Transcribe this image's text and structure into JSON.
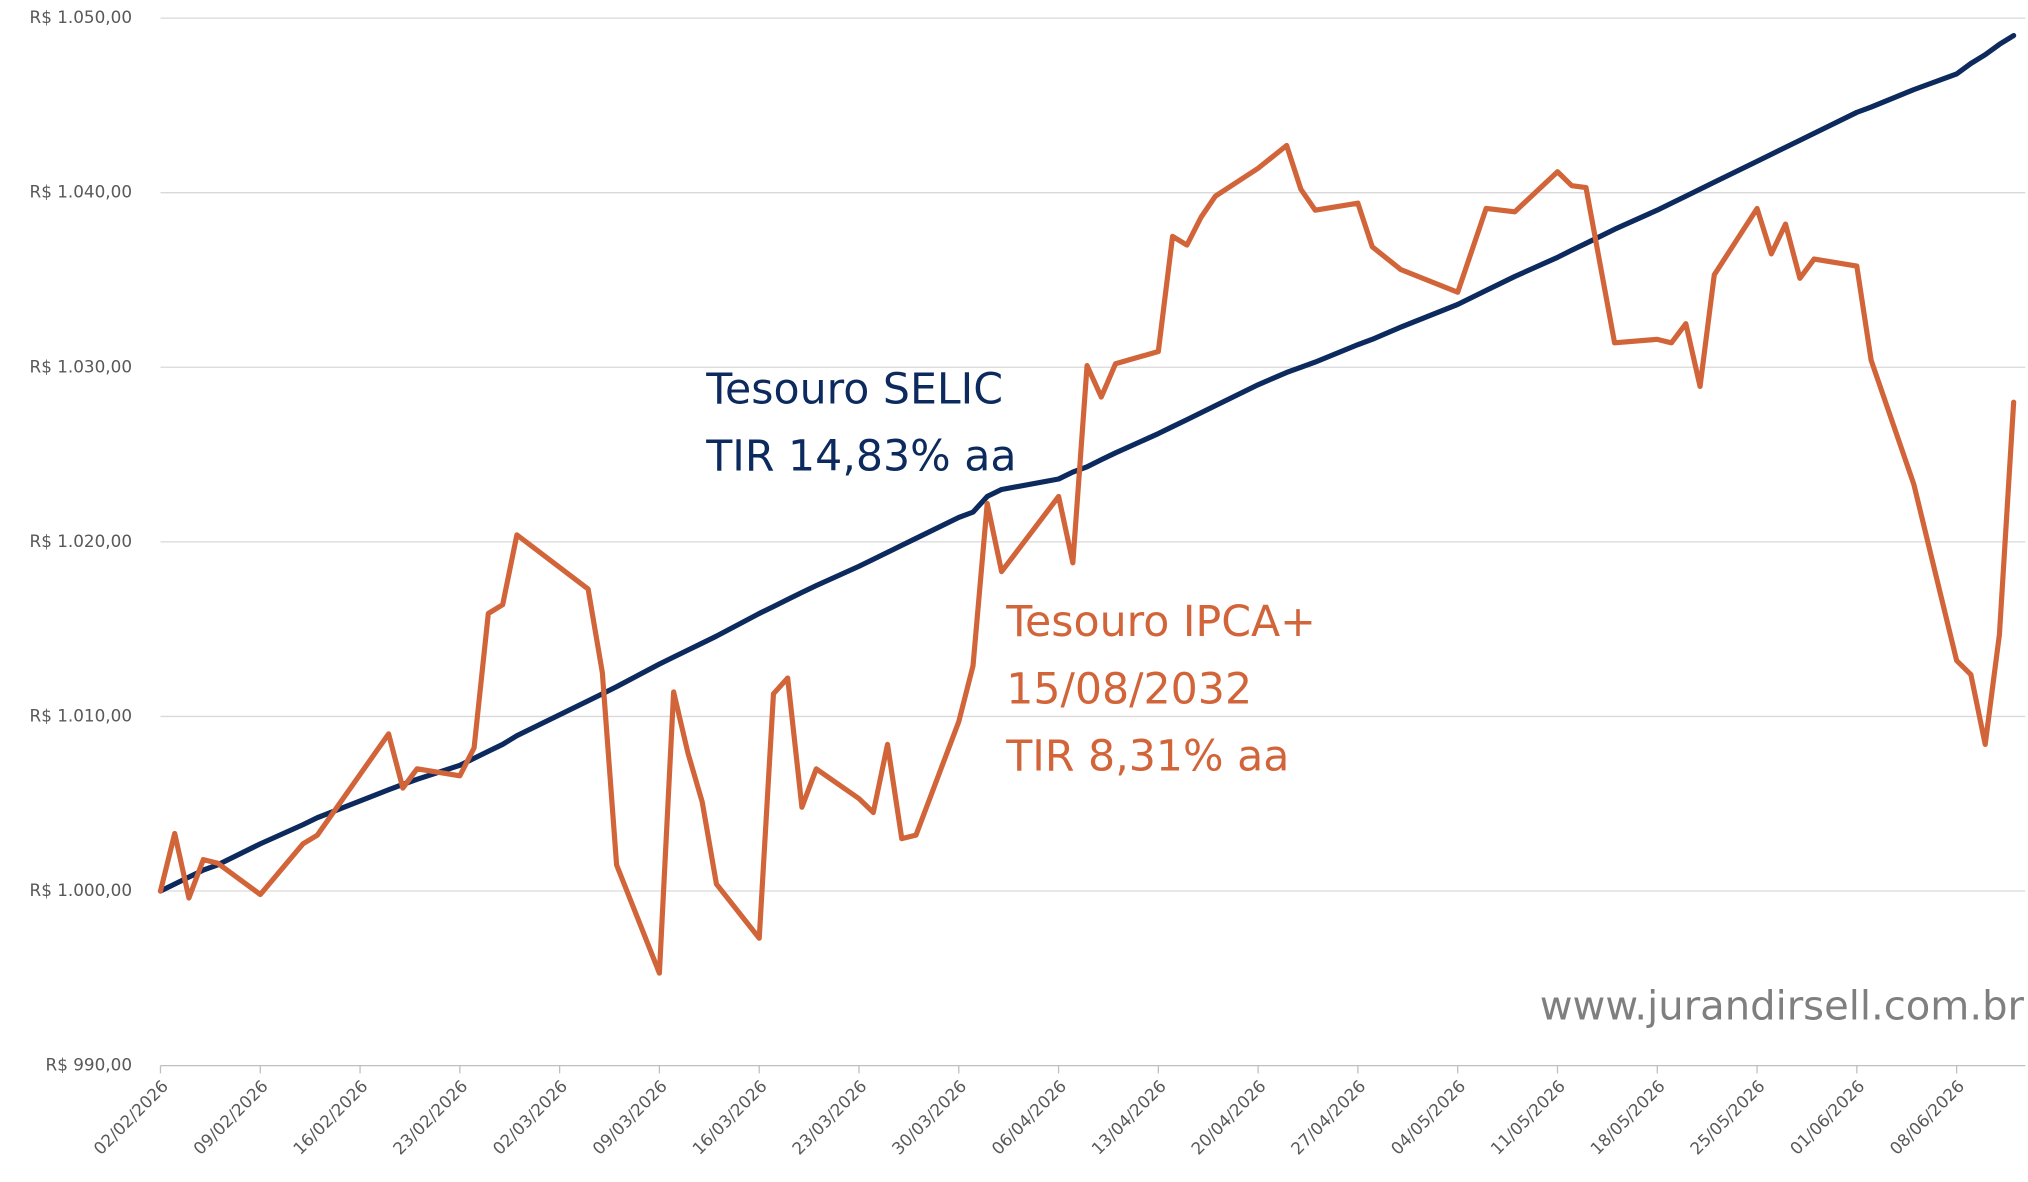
{
  "chart_data": {
    "type": "line",
    "x": [
      "02/02/2026",
      "03/02/2026",
      "04/02/2026",
      "05/02/2026",
      "06/02/2026",
      "09/02/2026",
      "12/02/2026",
      "13/02/2026",
      "18/02/2026",
      "19/02/2026",
      "20/02/2026",
      "23/02/2026",
      "24/02/2026",
      "25/02/2026",
      "26/02/2026",
      "27/02/2026",
      "04/03/2026",
      "05/03/2026",
      "06/03/2026",
      "09/03/2026",
      "10/03/2026",
      "11/03/2026",
      "12/03/2026",
      "13/03/2026",
      "16/03/2026",
      "17/03/2026",
      "18/03/2026",
      "19/03/2026",
      "20/03/2026",
      "23/03/2026",
      "24/03/2026",
      "25/03/2026",
      "26/03/2026",
      "27/03/2026",
      "30/03/2026",
      "31/03/2026",
      "01/04/2026",
      "02/04/2026",
      "06/04/2026",
      "07/04/2026",
      "08/04/2026",
      "09/04/2026",
      "10/04/2026",
      "13/04/2026",
      "14/04/2026",
      "15/04/2026",
      "16/04/2026",
      "17/04/2026",
      "20/04/2026",
      "22/04/2026",
      "23/04/2026",
      "24/04/2026",
      "27/04/2026",
      "28/04/2026",
      "30/04/2026",
      "04/05/2026",
      "06/05/2026",
      "08/05/2026",
      "11/05/2026",
      "12/05/2026",
      "13/05/2026",
      "15/05/2026",
      "18/05/2026",
      "19/05/2026",
      "20/05/2026",
      "21/05/2026",
      "22/05/2026",
      "25/05/2026",
      "26/05/2026",
      "27/05/2026",
      "28/05/2026",
      "29/05/2026",
      "01/06/2026",
      "02/06/2026",
      "05/06/2026",
      "08/06/2026",
      "09/06/2026",
      "10/06/2026",
      "11/06/2026",
      "12/06/2026"
    ],
    "series": [
      {
        "name": "Tesouro SELIC",
        "color": "#0d2a5e",
        "values": [
          1000.0,
          1000.4,
          1000.8,
          1001.2,
          1001.5,
          1002.7,
          1003.8,
          1004.2,
          1005.8,
          1006.1,
          1006.4,
          1007.2,
          1007.6,
          1008.0,
          1008.4,
          1008.9,
          1010.9,
          1011.3,
          1011.7,
          1013.0,
          1013.4,
          1013.8,
          1014.2,
          1014.6,
          1015.9,
          1016.3,
          1016.7,
          1017.1,
          1017.5,
          1018.6,
          1019.0,
          1019.4,
          1019.8,
          1020.2,
          1021.4,
          1021.7,
          1022.6,
          1023.0,
          1023.6,
          1024.0,
          1024.3,
          1024.7,
          1025.1,
          1026.2,
          1026.6,
          1027.0,
          1027.4,
          1027.8,
          1029.0,
          1029.7,
          1030.0,
          1030.3,
          1031.3,
          1031.6,
          1032.3,
          1033.6,
          1034.4,
          1035.2,
          1036.3,
          1036.7,
          1037.1,
          1037.9,
          1039.0,
          1039.4,
          1039.8,
          1040.2,
          1040.6,
          1041.8,
          1042.2,
          1042.6,
          1043.0,
          1043.4,
          1044.6,
          1044.9,
          1045.9,
          1046.8,
          1047.4,
          1047.9,
          1048.5,
          1049.0
        ]
      },
      {
        "name": "Tesouro IPCA+ 15/08/2032",
        "color": "#d2643a",
        "values": [
          1000.0,
          1003.3,
          999.6,
          1001.8,
          1001.6,
          999.8,
          1002.7,
          1003.2,
          1009.0,
          1005.9,
          1007.0,
          1006.6,
          1008.2,
          1015.9,
          1016.4,
          1020.4,
          1017.3,
          1012.5,
          1001.5,
          995.3,
          1011.4,
          1007.9,
          1005.1,
          1000.4,
          997.3,
          1011.3,
          1012.2,
          1004.8,
          1007.0,
          1005.3,
          1004.5,
          1008.4,
          1003.0,
          1003.2,
          1009.7,
          1012.9,
          1022.2,
          1018.3,
          1022.6,
          1018.8,
          1030.1,
          1028.3,
          1030.2,
          1030.9,
          1037.5,
          1037.0,
          1038.6,
          1039.8,
          1041.4,
          1042.7,
          1040.2,
          1039.0,
          1039.4,
          1036.9,
          1035.6,
          1034.3,
          1039.1,
          1038.9,
          1041.2,
          1040.4,
          1040.3,
          1031.4,
          1031.6,
          1031.4,
          1032.5,
          1028.9,
          1035.3,
          1039.1,
          1036.5,
          1038.2,
          1035.1,
          1036.2,
          1035.8,
          1030.4,
          1023.3,
          1013.2,
          1012.4,
          1008.4,
          1014.7,
          1028.0
        ]
      }
    ],
    "xlim": [
      "02/02/2026",
      "12/06/2026"
    ],
    "xticks": [
      "02/02/2026",
      "09/02/2026",
      "16/02/2026",
      "23/02/2026",
      "02/03/2026",
      "09/03/2026",
      "16/03/2026",
      "23/03/2026",
      "30/03/2026",
      "06/04/2026",
      "13/04/2026",
      "20/04/2026",
      "27/04/2026",
      "04/05/2026",
      "11/05/2026",
      "18/05/2026",
      "25/05/2026",
      "01/06/2026",
      "08/06/2026"
    ],
    "ylim": [
      990,
      1050
    ],
    "yticks": [
      {
        "value": 990,
        "label": "R$ 990,00"
      },
      {
        "value": 1000,
        "label": "R$ 1.000,00"
      },
      {
        "value": 1010,
        "label": "R$ 1.010,00"
      },
      {
        "value": 1020,
        "label": "R$ 1.020,00"
      },
      {
        "value": 1030,
        "label": "R$ 1.030,00"
      },
      {
        "value": 1040,
        "label": "R$ 1.040,00"
      },
      {
        "value": 1050,
        "label": "R$ 1.050,00"
      }
    ],
    "grid": true,
    "annotations": [
      {
        "lines": [
          "Tesouro SELIC",
          "TIR 14,83% aa"
        ],
        "color": "#0d2a5e"
      },
      {
        "lines": [
          "Tesouro IPCA+",
          "15/08/2032",
          "TIR 8,31% aa"
        ],
        "color": "#d2643a"
      }
    ],
    "watermark": "www.jurandirsell.com.br"
  }
}
